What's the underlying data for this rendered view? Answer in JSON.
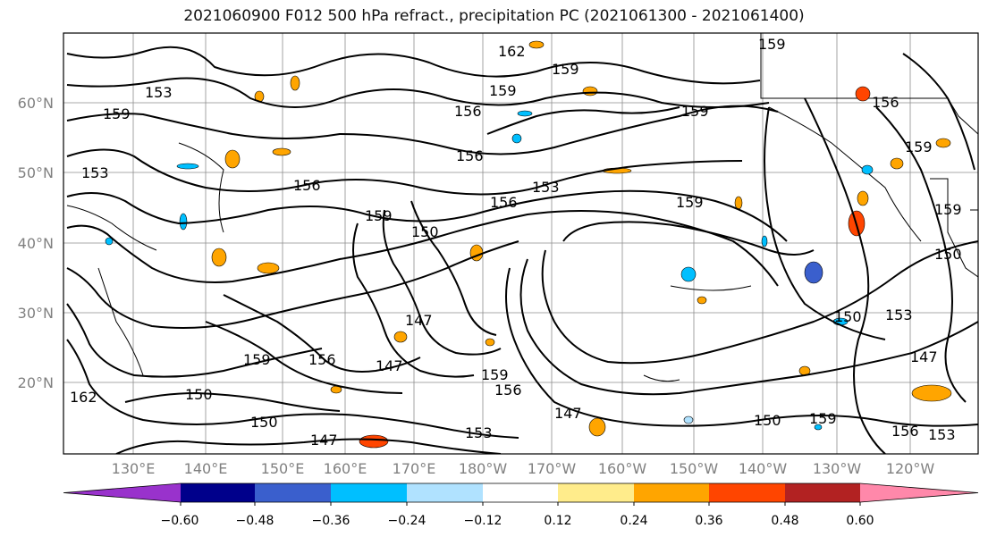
{
  "title": "2021060900 F012 500 hPa refract., precipitation PC (2021061300 - 2021061400)",
  "lat_labels": [
    "60°N",
    "50°N",
    "40°N",
    "30°N",
    "20°N"
  ],
  "lon_labels": [
    "130°E",
    "140°E",
    "150°E",
    "160°E",
    "170°E",
    "180°W",
    "170°W",
    "160°W",
    "150°W",
    "140°W",
    "130°W",
    "120°W"
  ],
  "contour_labels": [
    "162",
    "159",
    "153",
    "159",
    "156",
    "159",
    "159",
    "156",
    "159",
    "156",
    "153",
    "156",
    "159",
    "153",
    "159",
    "156",
    "150",
    "150",
    "153",
    "147",
    "150",
    "147",
    "147",
    "156",
    "159",
    "156",
    "159",
    "150",
    "147",
    "150",
    "150",
    "147",
    "159",
    "156",
    "153",
    "162",
    "159",
    "153",
    "159"
  ],
  "colorbar": {
    "colors": [
      "#9932CC",
      "#00008B",
      "#3A5FCD",
      "#00BFFF",
      "#B0E2FF",
      "#FFFFFF",
      "#FFEC8B",
      "#FFA500",
      "#FF4500",
      "#B22222",
      "#FF88AA"
    ],
    "tick_labels": [
      "−0.60",
      "−0.48",
      "−0.36",
      "−0.24",
      "−0.12",
      "0.12",
      "0.24",
      "0.36",
      "0.48",
      "0.60"
    ]
  }
}
